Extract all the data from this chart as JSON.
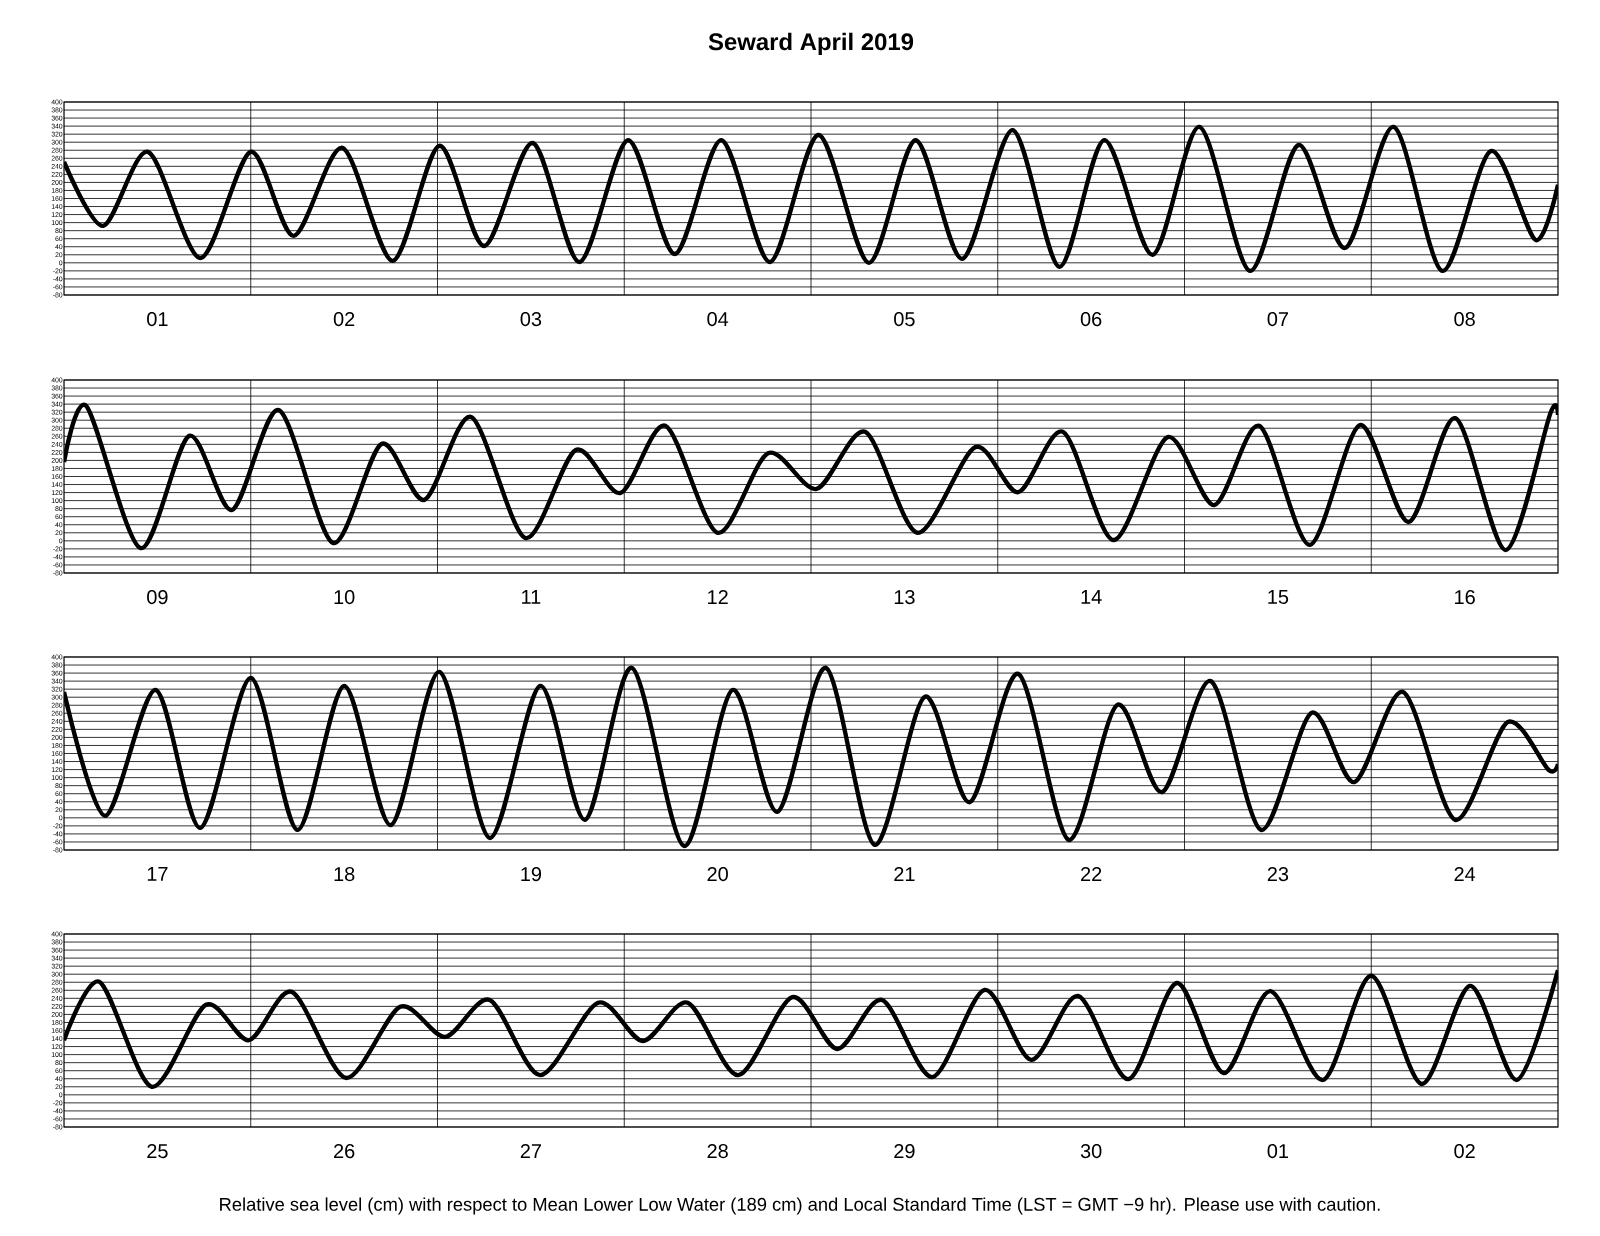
{
  "chart_data": [
    {
      "type": "line",
      "title": "Seward April 2019",
      "color": "#000000",
      "grid": true,
      "xlim": [
        "2019-04-01",
        "2019-04-09"
      ],
      "ylim": [
        -80,
        400
      ],
      "yticks": [
        -80,
        -60,
        -40,
        -20,
        0,
        20,
        40,
        60,
        80,
        100,
        120,
        140,
        160,
        180,
        200,
        220,
        240,
        260,
        280,
        300,
        320,
        340,
        360,
        380,
        400
      ],
      "xticks": [
        {
          "value": "2019-04-02",
          "label": null
        },
        {
          "value": "2019-04-03",
          "label": null
        },
        {
          "value": "2019-04-04",
          "label": null
        },
        {
          "value": "2019-04-05",
          "label": null
        },
        {
          "value": "2019-04-06",
          "label": null
        },
        {
          "value": "2019-04-07",
          "label": null
        },
        {
          "value": "2019-04-08",
          "label": null
        },
        {
          "value": "2019-04-01T12:00",
          "label": "01"
        },
        {
          "value": "2019-04-02T12:00",
          "label": "02"
        },
        {
          "value": "2019-04-03T12:00",
          "label": "03"
        },
        {
          "value": "2019-04-04T12:00",
          "label": "04"
        },
        {
          "value": "2019-04-05T12:00",
          "label": "05"
        },
        {
          "value": "2019-04-06T12:00",
          "label": "06"
        },
        {
          "value": "2019-04-07T12:00",
          "label": "07"
        },
        {
          "value": "2019-04-08T12:00",
          "label": "08"
        }
      ],
      "x": [
        "2019-04-01T00:00",
        "2019-04-01T05:02",
        "2019-04-01T10:48",
        "2019-04-01T17:31",
        "2019-04-02T00:00",
        "2019-04-02T05:31",
        "2019-04-02T11:46",
        "2019-04-02T18:14",
        "2019-04-03T00:14",
        "2019-04-03T06:00",
        "2019-04-03T12:14",
        "2019-04-03T18:14",
        "2019-04-04T00:29",
        "2019-04-04T06:29",
        "2019-04-04T12:29",
        "2019-04-04T18:43",
        "2019-04-05T00:58",
        "2019-04-05T07:26",
        "2019-04-05T13:26",
        "2019-04-05T19:26",
        "2019-04-06T01:55",
        "2019-04-06T07:55",
        "2019-04-06T13:41",
        "2019-04-06T19:55",
        "2019-04-07T01:55",
        "2019-04-07T08:24",
        "2019-04-07T14:38",
        "2019-04-07T20:38",
        "2019-04-08T02:53",
        "2019-04-08T09:07",
        "2019-04-08T15:22",
        "2019-04-08T21:07",
        "2019-04-09T00:00"
      ],
      "values": [
        251,
        92,
        276,
        12,
        276,
        67,
        286,
        5,
        291,
        42,
        298,
        2,
        305,
        22,
        305,
        2,
        318,
        0,
        305,
        10,
        330,
        -10,
        305,
        20,
        338,
        -20,
        293,
        37,
        338,
        -20,
        278,
        57,
        194
      ]
    },
    {
      "type": "line",
      "color": "#000000",
      "grid": true,
      "xlim": [
        "2019-04-09",
        "2019-04-17"
      ],
      "ylim": [
        -80,
        400
      ],
      "yticks": [
        -80,
        -60,
        -40,
        -20,
        0,
        20,
        40,
        60,
        80,
        100,
        120,
        140,
        160,
        180,
        200,
        220,
        240,
        260,
        280,
        300,
        320,
        340,
        360,
        380,
        400
      ],
      "xticks": [
        {
          "value": "2019-04-10",
          "label": null
        },
        {
          "value": "2019-04-11",
          "label": null
        },
        {
          "value": "2019-04-12",
          "label": null
        },
        {
          "value": "2019-04-13",
          "label": null
        },
        {
          "value": "2019-04-14",
          "label": null
        },
        {
          "value": "2019-04-15",
          "label": null
        },
        {
          "value": "2019-04-16",
          "label": null
        },
        {
          "value": "2019-04-09T12:00",
          "label": "09"
        },
        {
          "value": "2019-04-10T12:00",
          "label": "10"
        },
        {
          "value": "2019-04-11T12:00",
          "label": "11"
        },
        {
          "value": "2019-04-12T12:00",
          "label": "12"
        },
        {
          "value": "2019-04-13T12:00",
          "label": "13"
        },
        {
          "value": "2019-04-14T12:00",
          "label": "14"
        },
        {
          "value": "2019-04-15T12:00",
          "label": "15"
        },
        {
          "value": "2019-04-16T12:00",
          "label": "16"
        }
      ],
      "x": [
        "2019-04-09T00:00",
        "2019-04-09T02:53",
        "2019-04-09T09:50",
        "2019-04-09T16:05",
        "2019-04-09T21:36",
        "2019-04-10T03:36",
        "2019-04-10T10:34",
        "2019-04-10T16:48",
        "2019-04-10T22:19",
        "2019-04-11T04:19",
        "2019-04-11T11:17",
        "2019-04-11T17:46",
        "2019-04-11T23:31",
        "2019-04-12T05:17",
        "2019-04-12T12:00",
        "2019-04-12T18:29",
        "2019-04-13T00:43",
        "2019-04-13T06:58",
        "2019-04-13T13:41",
        "2019-04-13T21:07",
        "2019-04-14T02:38",
        "2019-04-14T08:24",
        "2019-04-14T14:53",
        "2019-04-14T21:50",
        "2019-04-15T03:50",
        "2019-04-15T09:36",
        "2019-04-15T16:05",
        "2019-04-15T22:34",
        "2019-04-16T04:48",
        "2019-04-16T10:48",
        "2019-04-16T17:17",
        "2019-04-16T23:02",
        "2019-04-17T00:00"
      ],
      "values": [
        196,
        335,
        -18,
        261,
        77,
        325,
        -5,
        241,
        102,
        308,
        7,
        226,
        119,
        286,
        20,
        218,
        129,
        271,
        20,
        233,
        121,
        271,
        2,
        258,
        89,
        286,
        -10,
        288,
        47,
        305,
        -23,
        318,
        313
      ]
    },
    {
      "type": "line",
      "color": "#000000",
      "grid": true,
      "xlim": [
        "2019-04-17",
        "2019-04-25"
      ],
      "ylim": [
        -80,
        400
      ],
      "yticks": [
        -80,
        -60,
        -40,
        -20,
        0,
        20,
        40,
        60,
        80,
        100,
        120,
        140,
        160,
        180,
        200,
        220,
        240,
        260,
        280,
        300,
        320,
        340,
        360,
        380,
        400
      ],
      "xticks": [
        {
          "value": "2019-04-18",
          "label": null
        },
        {
          "value": "2019-04-19",
          "label": null
        },
        {
          "value": "2019-04-20",
          "label": null
        },
        {
          "value": "2019-04-21",
          "label": null
        },
        {
          "value": "2019-04-22",
          "label": null
        },
        {
          "value": "2019-04-23",
          "label": null
        },
        {
          "value": "2019-04-24",
          "label": null
        },
        {
          "value": "2019-04-17T12:00",
          "label": "17"
        },
        {
          "value": "2019-04-18T12:00",
          "label": "18"
        },
        {
          "value": "2019-04-19T12:00",
          "label": "19"
        },
        {
          "value": "2019-04-20T12:00",
          "label": "20"
        },
        {
          "value": "2019-04-21T12:00",
          "label": "21"
        },
        {
          "value": "2019-04-22T12:00",
          "label": "22"
        },
        {
          "value": "2019-04-23T12:00",
          "label": "23"
        },
        {
          "value": "2019-04-24T12:00",
          "label": "24"
        }
      ],
      "x": [
        "2019-04-17T00:00",
        "2019-04-17T05:17",
        "2019-04-17T11:46",
        "2019-04-17T17:31",
        "2019-04-18T00:00",
        "2019-04-18T06:00",
        "2019-04-18T12:00",
        "2019-04-18T18:00",
        "2019-04-19T00:14",
        "2019-04-19T06:43",
        "2019-04-19T13:12",
        "2019-04-19T18:58",
        "2019-04-20T00:58",
        "2019-04-20T07:41",
        "2019-04-20T13:55",
        "2019-04-20T19:41",
        "2019-04-21T01:55",
        "2019-04-21T08:10",
        "2019-04-21T14:38",
        "2019-04-21T20:24",
        "2019-04-22T02:38",
        "2019-04-22T09:07",
        "2019-04-22T15:22",
        "2019-04-22T21:07",
        "2019-04-23T03:22",
        "2019-04-23T09:50",
        "2019-04-23T16:19",
        "2019-04-23T21:50",
        "2019-04-24T04:05",
        "2019-04-24T10:48",
        "2019-04-24T17:31",
        "2019-04-24T22:48",
        "2019-04-25T00:00"
      ],
      "values": [
        313,
        5,
        318,
        -25,
        348,
        -30,
        328,
        -18,
        363,
        -50,
        328,
        -5,
        373,
        -70,
        318,
        15,
        373,
        -67,
        301,
        39,
        358,
        -55,
        281,
        64,
        340,
        -30,
        261,
        89,
        313,
        -5,
        238,
        119,
        134
      ]
    },
    {
      "type": "line",
      "color": "#000000",
      "grid": true,
      "xlim": [
        "2019-04-25",
        "2019-05-03"
      ],
      "ylim": [
        -80,
        400
      ],
      "yticks": [
        -80,
        -60,
        -40,
        -20,
        0,
        20,
        40,
        60,
        80,
        100,
        120,
        140,
        160,
        180,
        200,
        220,
        240,
        260,
        280,
        300,
        320,
        340,
        360,
        380,
        400
      ],
      "xticks": [
        {
          "value": "2019-04-26",
          "label": null
        },
        {
          "value": "2019-04-27",
          "label": null
        },
        {
          "value": "2019-04-28",
          "label": null
        },
        {
          "value": "2019-04-29",
          "label": null
        },
        {
          "value": "2019-04-30",
          "label": null
        },
        {
          "value": "2019-05-01",
          "label": null
        },
        {
          "value": "2019-05-02",
          "label": null
        },
        {
          "value": "2019-04-25T12:00",
          "label": "25"
        },
        {
          "value": "2019-04-26T12:00",
          "label": "26"
        },
        {
          "value": "2019-04-27T12:00",
          "label": "27"
        },
        {
          "value": "2019-04-28T12:00",
          "label": "28"
        },
        {
          "value": "2019-04-29T12:00",
          "label": "29"
        },
        {
          "value": "2019-04-30T12:00",
          "label": "30"
        },
        {
          "value": "2019-05-01T12:00",
          "label": "01"
        },
        {
          "value": "2019-05-02T12:00",
          "label": "02"
        }
      ],
      "x": [
        "2019-04-25T00:00",
        "2019-04-25T04:34",
        "2019-04-25T11:17",
        "2019-04-25T18:14",
        "2019-04-25T23:46",
        "2019-04-26T05:17",
        "2019-04-26T12:14",
        "2019-04-26T19:12",
        "2019-04-27T00:58",
        "2019-04-27T06:43",
        "2019-04-27T13:12",
        "2019-04-27T20:38",
        "2019-04-28T02:24",
        "2019-04-28T08:10",
        "2019-04-28T14:38",
        "2019-04-28T21:36",
        "2019-04-29T03:22",
        "2019-04-29T09:07",
        "2019-04-29T15:36",
        "2019-04-29T22:19",
        "2019-04-30T04:19",
        "2019-04-30T10:19",
        "2019-04-30T16:48",
        "2019-04-30T23:02",
        "2019-05-01T05:02",
        "2019-05-01T11:02",
        "2019-05-01T17:46",
        "2019-05-02T00:00",
        "2019-05-02T06:29",
        "2019-05-02T12:43",
        "2019-05-02T18:43",
        "2019-05-03T00:00"
      ],
      "values": [
        136,
        281,
        20,
        224,
        136,
        256,
        42,
        219,
        144,
        236,
        49,
        229,
        134,
        229,
        49,
        243,
        114,
        236,
        44,
        261,
        87,
        246,
        39,
        278,
        54,
        258,
        37,
        296,
        27,
        271,
        37,
        310
      ],
      "annotations": [
        "Relative sea level (cm) with respect to Mean Lower Low Water (189 cm) and Local Standard Time (LST = GMT −9 hr). Please use with caution."
      ]
    }
  ]
}
